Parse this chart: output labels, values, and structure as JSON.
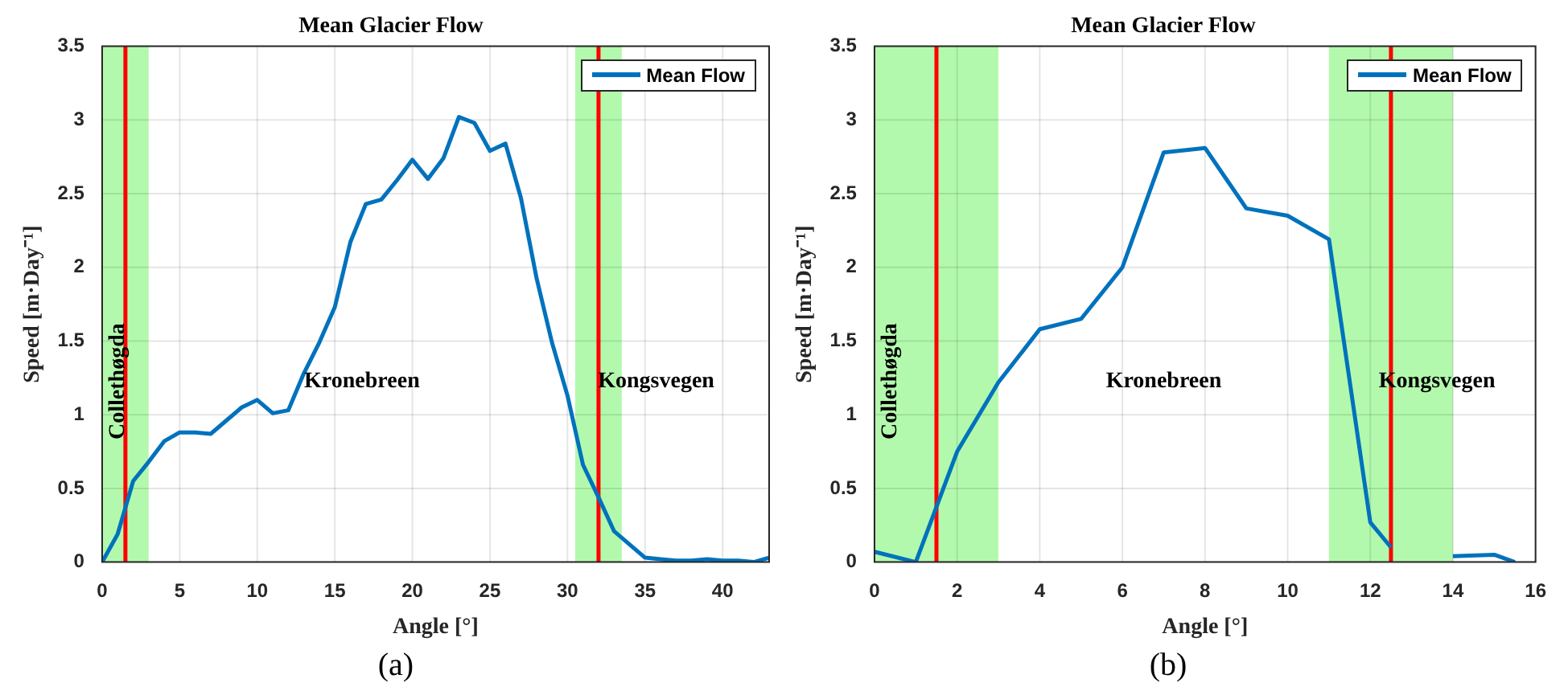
{
  "chart_data": [
    {
      "type": "line",
      "title": "Mean Glacier Flow",
      "xlabel": "Angle [°]",
      "ylabel": "Speed [m·Day⁻¹]",
      "x": [
        0,
        1,
        2,
        3,
        4,
        5,
        6,
        7,
        8,
        9,
        10,
        11,
        12,
        13,
        14,
        15,
        16,
        17,
        18,
        19,
        20,
        21,
        22,
        23,
        24,
        25,
        26,
        27,
        28,
        29,
        30,
        31,
        32,
        33,
        34,
        35,
        36,
        37,
        38,
        39,
        40,
        41,
        42,
        43
      ],
      "series": [
        {
          "name": "Mean Flow",
          "color": "#0072bd",
          "values": [
            0,
            0.19,
            0.55,
            0.68,
            0.82,
            0.88,
            0.88,
            0.87,
            0.96,
            1.05,
            1.1,
            1.01,
            1.03,
            1.28,
            1.49,
            1.73,
            2.17,
            2.43,
            2.46,
            2.59,
            2.73,
            2.6,
            2.74,
            3.02,
            2.98,
            2.79,
            2.84,
            2.47,
            1.93,
            1.49,
            1.13,
            0.66,
            0.44,
            0.21,
            0.12,
            0.03,
            0.02,
            0.01,
            0.01,
            0.02,
            0.01,
            0.01,
            0,
            0.03
          ]
        }
      ],
      "xlim": [
        0,
        43
      ],
      "xticks": [
        0,
        5,
        10,
        15,
        20,
        25,
        30,
        35,
        40
      ],
      "ylim": [
        0,
        3.5
      ],
      "yticks": [
        0,
        0.5,
        1,
        1.5,
        2,
        2.5,
        3,
        3.5
      ],
      "grid": true,
      "legend": "top right",
      "line_style": "solid",
      "marker": "none",
      "bands": [
        {
          "axis": "x",
          "from": 0,
          "to": 3,
          "color": "#b3f9ad",
          "label": "Collethøgda"
        },
        {
          "axis": "x",
          "from": 30.5,
          "to": 33.5,
          "color": "#b3f9ad",
          "label": "Kongsvegen"
        }
      ],
      "ref_lines": [
        {
          "axis": "x",
          "value": 1.5,
          "color": "#ff0000"
        },
        {
          "axis": "x",
          "value": 32,
          "color": "#ff0000"
        }
      ],
      "annotations": [
        "Kronebreen",
        "(a)"
      ]
    },
    {
      "type": "line",
      "title": "Mean Glacier Flow",
      "xlabel": "Angle [°]",
      "ylabel": "Speed [m·Day⁻¹]",
      "x": [
        0,
        1,
        2,
        3,
        4,
        5,
        6,
        7,
        8,
        9,
        10,
        11,
        12,
        12.5,
        13,
        14,
        15,
        15.5
      ],
      "series": [
        {
          "name": "Mean Flow",
          "color": "#0072bd",
          "values": [
            0.07,
            0,
            0.75,
            1.22,
            1.58,
            1.65,
            2.0,
            2.78,
            2.81,
            2.4,
            2.35,
            2.19,
            0.27,
            0.1,
            null,
            0.04,
            0.05,
            0
          ]
        }
      ],
      "xlim": [
        0,
        16
      ],
      "xticks": [
        0,
        2,
        4,
        6,
        8,
        10,
        12,
        14,
        16
      ],
      "ylim": [
        0,
        3.5
      ],
      "yticks": [
        0,
        0.5,
        1,
        1.5,
        2,
        2.5,
        3,
        3.5
      ],
      "grid": true,
      "legend": "top right",
      "line_style": "solid",
      "marker": "none",
      "bands": [
        {
          "axis": "x",
          "from": 0,
          "to": 3,
          "color": "#b3f9ad",
          "label": "Collethøgda"
        },
        {
          "axis": "x",
          "from": 11,
          "to": 14,
          "color": "#b3f9ad",
          "label": "Kongsvegen"
        }
      ],
      "ref_lines": [
        {
          "axis": "x",
          "value": 1.5,
          "color": "#ff0000"
        },
        {
          "axis": "x",
          "value": 12.5,
          "color": "#ff0000"
        }
      ],
      "annotations": [
        "Kronebreen",
        "(b)"
      ]
    }
  ]
}
